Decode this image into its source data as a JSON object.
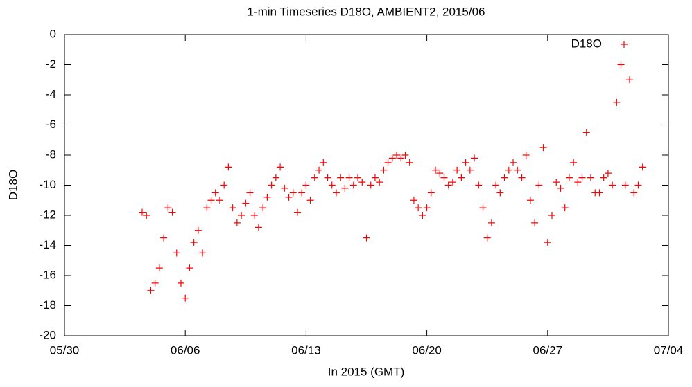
{
  "chart_data": {
    "type": "scatter",
    "title": "1-min Timeseries D18O, AMBIENT2, 2015/06",
    "x_label": "In 2015 (GMT)",
    "y_label": "D18O",
    "xlim": [
      0,
      35
    ],
    "ylim": [
      -20,
      0
    ],
    "xticks": [
      {
        "value": 0,
        "label": "05/30"
      },
      {
        "value": 7,
        "label": "06/06"
      },
      {
        "value": 14,
        "label": "06/13"
      },
      {
        "value": 21,
        "label": "06/20"
      },
      {
        "value": 28,
        "label": "06/27"
      },
      {
        "value": 35,
        "label": "07/04"
      }
    ],
    "yticks": [
      -20,
      -18,
      -16,
      -14,
      -12,
      -10,
      -8,
      -6,
      -4,
      -2,
      0
    ],
    "legend": "top-right",
    "series": [
      {
        "name": "D18O",
        "color": "#ff0000",
        "x": [
          4.5,
          4.75,
          5.0,
          5.25,
          5.5,
          5.75,
          6.0,
          6.25,
          6.5,
          6.75,
          7.0,
          7.25,
          7.5,
          7.75,
          8.0,
          8.25,
          8.5,
          8.75,
          9.0,
          9.25,
          9.5,
          9.75,
          10.0,
          10.25,
          10.5,
          10.75,
          11.0,
          11.25,
          11.5,
          11.75,
          12.0,
          12.25,
          12.5,
          12.75,
          13.0,
          13.25,
          13.5,
          13.75,
          14.0,
          14.25,
          14.5,
          14.75,
          15.0,
          15.25,
          15.5,
          15.75,
          16.0,
          16.25,
          16.5,
          16.75,
          17.0,
          17.25,
          17.5,
          17.75,
          18.0,
          18.25,
          18.5,
          18.75,
          19.0,
          19.25,
          19.5,
          19.75,
          20.0,
          20.25,
          20.5,
          20.75,
          21.0,
          21.25,
          21.5,
          21.75,
          22.0,
          22.25,
          22.5,
          22.75,
          23.0,
          23.25,
          23.5,
          23.75,
          24.0,
          24.25,
          24.5,
          24.75,
          25.0,
          25.25,
          25.5,
          25.75,
          26.0,
          26.25,
          26.5,
          26.75,
          27.0,
          27.25,
          27.5,
          27.75,
          28.0,
          28.25,
          28.5,
          28.75,
          29.0,
          29.25,
          29.5,
          29.75,
          30.0,
          30.25,
          30.5,
          30.75,
          31.0,
          31.25,
          31.5,
          31.75,
          32.0,
          32.25,
          32.5,
          32.75,
          33.0,
          33.25,
          33.5
        ],
        "values": [
          -11.8,
          -12,
          -17,
          -16.5,
          -15.5,
          -13.5,
          -11.5,
          -11.8,
          -14.5,
          -16.5,
          -17.5,
          -15.5,
          -13.8,
          -13,
          -14.5,
          -11.5,
          -11,
          -10.5,
          -11,
          -10,
          -8.8,
          -11.5,
          -12.5,
          -12,
          -11.2,
          -10.5,
          -12,
          -12.8,
          -11.5,
          -10.8,
          -10,
          -9.5,
          -8.8,
          -10.2,
          -10.8,
          -10.5,
          -11.8,
          -10.5,
          -10,
          -11,
          -9.5,
          -9,
          -8.5,
          -9.5,
          -10,
          -10.5,
          -9.5,
          -10.2,
          -9.5,
          -10,
          -9.5,
          -9.8,
          -13.5,
          -10,
          -9.5,
          -9.8,
          -9,
          -8.5,
          -8.2,
          -8,
          -8.2,
          -8,
          -8.5,
          -11,
          -11.5,
          -12,
          -11.5,
          -10.5,
          -9,
          -9.2,
          -9.5,
          -10,
          -9.8,
          -9,
          -9.5,
          -8.5,
          -9,
          -8.2,
          -10,
          -11.5,
          -13.5,
          -12.5,
          -10,
          -10.5,
          -9.5,
          -9,
          -8.5,
          -9,
          -9.5,
          -8,
          -11,
          -12.5,
          -10,
          -7.5,
          -13.8,
          -12,
          -9.8,
          -10.2,
          -11.5,
          -9.5,
          -8.5,
          -9.8,
          -9.5,
          -6.5,
          -9.5,
          -10.5,
          -10.5,
          -9.5,
          -9.2,
          -10,
          -4.5,
          -2,
          -10,
          -3,
          -10.5,
          -10,
          -8.8
        ]
      }
    ]
  }
}
